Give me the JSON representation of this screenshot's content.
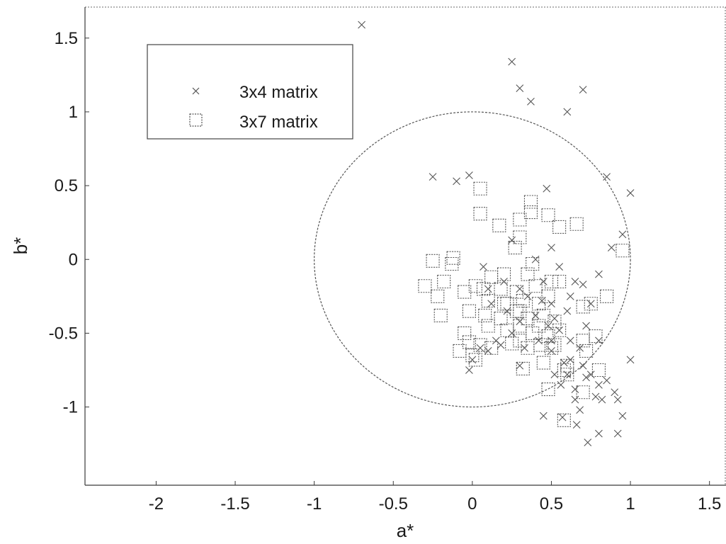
{
  "chart_data": {
    "type": "scatter",
    "xlabel": "a*",
    "ylabel": "b*",
    "xlim": [
      -2.45,
      1.6
    ],
    "ylim": [
      -1.53,
      1.71
    ],
    "x_ticks": [
      -2,
      -1.5,
      -1,
      -0.5,
      0,
      0.5,
      1,
      1.5
    ],
    "x_tick_labels": [
      "-2",
      "-1.5",
      "-1",
      "-0.5",
      "0",
      "0.5",
      "1",
      "1.5"
    ],
    "y_ticks": [
      1.5,
      1,
      0.5,
      0,
      -0.5,
      -1
    ],
    "y_tick_labels": [
      "1.5",
      "1",
      "0.5",
      "0",
      "-0.5",
      "-1"
    ],
    "grid": false,
    "legend_position": "top-left",
    "reference_circle": {
      "center": [
        0,
        0
      ],
      "radius": 1
    },
    "series": [
      {
        "name": "3x4 matrix",
        "marker": "x",
        "points": [
          [
            -0.7,
            1.59
          ],
          [
            0.25,
            1.34
          ],
          [
            0.3,
            1.16
          ],
          [
            0.37,
            1.07
          ],
          [
            0.7,
            1.15
          ],
          [
            0.6,
            1.0
          ],
          [
            -0.25,
            0.56
          ],
          [
            -0.02,
            0.57
          ],
          [
            -0.1,
            0.53
          ],
          [
            0.85,
            0.56
          ],
          [
            1.0,
            0.45
          ],
          [
            0.47,
            0.48
          ],
          [
            0.5,
            0.08
          ],
          [
            0.95,
            0.17
          ],
          [
            0.25,
            0.13
          ],
          [
            0.88,
            0.08
          ],
          [
            0.07,
            -0.05
          ],
          [
            0.4,
            0.0
          ],
          [
            0.55,
            -0.05
          ],
          [
            0.8,
            -0.1
          ],
          [
            0.1,
            -0.2
          ],
          [
            0.2,
            -0.15
          ],
          [
            0.3,
            -0.2
          ],
          [
            0.35,
            -0.25
          ],
          [
            0.45,
            -0.15
          ],
          [
            0.5,
            -0.3
          ],
          [
            0.6,
            -0.35
          ],
          [
            0.65,
            -0.15
          ],
          [
            0.7,
            -0.17
          ],
          [
            0.75,
            -0.3
          ],
          [
            0.12,
            -0.3
          ],
          [
            0.22,
            -0.35
          ],
          [
            0.3,
            -0.42
          ],
          [
            0.4,
            -0.38
          ],
          [
            0.48,
            -0.45
          ],
          [
            0.52,
            -0.4
          ],
          [
            0.55,
            -0.48
          ],
          [
            0.62,
            -0.55
          ],
          [
            0.68,
            -0.6
          ],
          [
            0.72,
            -0.45
          ],
          [
            0.15,
            -0.55
          ],
          [
            0.25,
            -0.5
          ],
          [
            0.33,
            -0.6
          ],
          [
            0.42,
            -0.55
          ],
          [
            0.5,
            -0.62
          ],
          [
            0.58,
            -0.7
          ],
          [
            0.62,
            -0.68
          ],
          [
            0.7,
            -0.72
          ],
          [
            0.75,
            -0.78
          ],
          [
            0.8,
            -0.55
          ],
          [
            0.0,
            -0.68
          ],
          [
            0.05,
            -0.6
          ],
          [
            0.1,
            -0.62
          ],
          [
            -0.02,
            -0.75
          ],
          [
            0.3,
            -0.72
          ],
          [
            0.52,
            -0.78
          ],
          [
            0.56,
            -0.85
          ],
          [
            0.6,
            -0.78
          ],
          [
            0.65,
            -0.88
          ],
          [
            0.72,
            -0.8
          ],
          [
            0.8,
            -0.85
          ],
          [
            0.85,
            -0.82
          ],
          [
            0.9,
            -0.9
          ],
          [
            0.78,
            -0.93
          ],
          [
            0.82,
            -0.95
          ],
          [
            0.92,
            -0.95
          ],
          [
            0.65,
            -0.95
          ],
          [
            0.45,
            -1.06
          ],
          [
            0.57,
            -1.07
          ],
          [
            0.68,
            -1.02
          ],
          [
            0.66,
            -1.12
          ],
          [
            0.95,
            -1.06
          ],
          [
            0.73,
            -1.24
          ],
          [
            0.8,
            -1.18
          ],
          [
            0.92,
            -1.18
          ],
          [
            1.0,
            -0.68
          ],
          [
            0.5,
            -0.55
          ],
          [
            0.44,
            -0.28
          ],
          [
            0.18,
            -0.58
          ],
          [
            0.62,
            -0.25
          ]
        ]
      },
      {
        "name": "3x7 matrix",
        "marker": "square",
        "points": [
          [
            0.05,
            0.48
          ],
          [
            0.05,
            0.31
          ],
          [
            0.17,
            0.23
          ],
          [
            0.37,
            0.39
          ],
          [
            0.37,
            0.32
          ],
          [
            0.3,
            0.27
          ],
          [
            0.48,
            0.3
          ],
          [
            0.55,
            0.22
          ],
          [
            0.66,
            0.24
          ],
          [
            0.3,
            0.15
          ],
          [
            0.27,
            0.08
          ],
          [
            0.95,
            0.06
          ],
          [
            -0.25,
            -0.01
          ],
          [
            -0.12,
            0.01
          ],
          [
            -0.13,
            -0.03
          ],
          [
            0.38,
            -0.03
          ],
          [
            0.2,
            -0.1
          ],
          [
            0.35,
            -0.1
          ],
          [
            0.12,
            -0.12
          ],
          [
            0.02,
            -0.18
          ],
          [
            -0.3,
            -0.18
          ],
          [
            -0.18,
            -0.15
          ],
          [
            -0.22,
            -0.25
          ],
          [
            -0.05,
            -0.22
          ],
          [
            0.07,
            -0.2
          ],
          [
            0.18,
            -0.2
          ],
          [
            0.28,
            -0.22
          ],
          [
            0.4,
            -0.18
          ],
          [
            0.5,
            -0.15
          ],
          [
            0.55,
            -0.15
          ],
          [
            0.1,
            -0.28
          ],
          [
            0.22,
            -0.3
          ],
          [
            0.32,
            -0.28
          ],
          [
            0.42,
            -0.3
          ],
          [
            0.48,
            -0.25
          ],
          [
            0.7,
            -0.32
          ],
          [
            0.75,
            -0.3
          ],
          [
            0.85,
            -0.25
          ],
          [
            -0.02,
            -0.35
          ],
          [
            0.08,
            -0.38
          ],
          [
            0.18,
            -0.4
          ],
          [
            0.28,
            -0.35
          ],
          [
            0.35,
            -0.4
          ],
          [
            0.45,
            -0.38
          ],
          [
            0.52,
            -0.42
          ],
          [
            -0.2,
            -0.38
          ],
          [
            -0.05,
            -0.5
          ],
          [
            0.1,
            -0.45
          ],
          [
            0.22,
            -0.48
          ],
          [
            0.3,
            -0.45
          ],
          [
            0.38,
            -0.5
          ],
          [
            0.48,
            -0.52
          ],
          [
            0.55,
            -0.48
          ],
          [
            0.7,
            -0.55
          ],
          [
            0.78,
            -0.52
          ],
          [
            -0.02,
            -0.56
          ],
          [
            0.05,
            -0.58
          ],
          [
            0.25,
            -0.57
          ],
          [
            0.3,
            -0.55
          ],
          [
            0.43,
            -0.58
          ],
          [
            0.52,
            -0.58
          ],
          [
            -0.08,
            -0.62
          ],
          [
            0.0,
            -0.65
          ],
          [
            0.02,
            -0.68
          ],
          [
            0.12,
            -0.6
          ],
          [
            0.35,
            -0.6
          ],
          [
            0.5,
            -0.6
          ],
          [
            0.72,
            -0.62
          ],
          [
            0.45,
            -0.7
          ],
          [
            0.32,
            -0.74
          ],
          [
            0.6,
            -0.72
          ],
          [
            0.58,
            -0.75
          ],
          [
            0.6,
            -0.78
          ],
          [
            0.8,
            -0.75
          ],
          [
            0.48,
            -0.88
          ],
          [
            0.7,
            -0.9
          ],
          [
            0.58,
            -1.09
          ],
          [
            0.2,
            -0.3
          ],
          [
            0.3,
            -0.35
          ],
          [
            0.42,
            -0.45
          ]
        ]
      }
    ]
  }
}
